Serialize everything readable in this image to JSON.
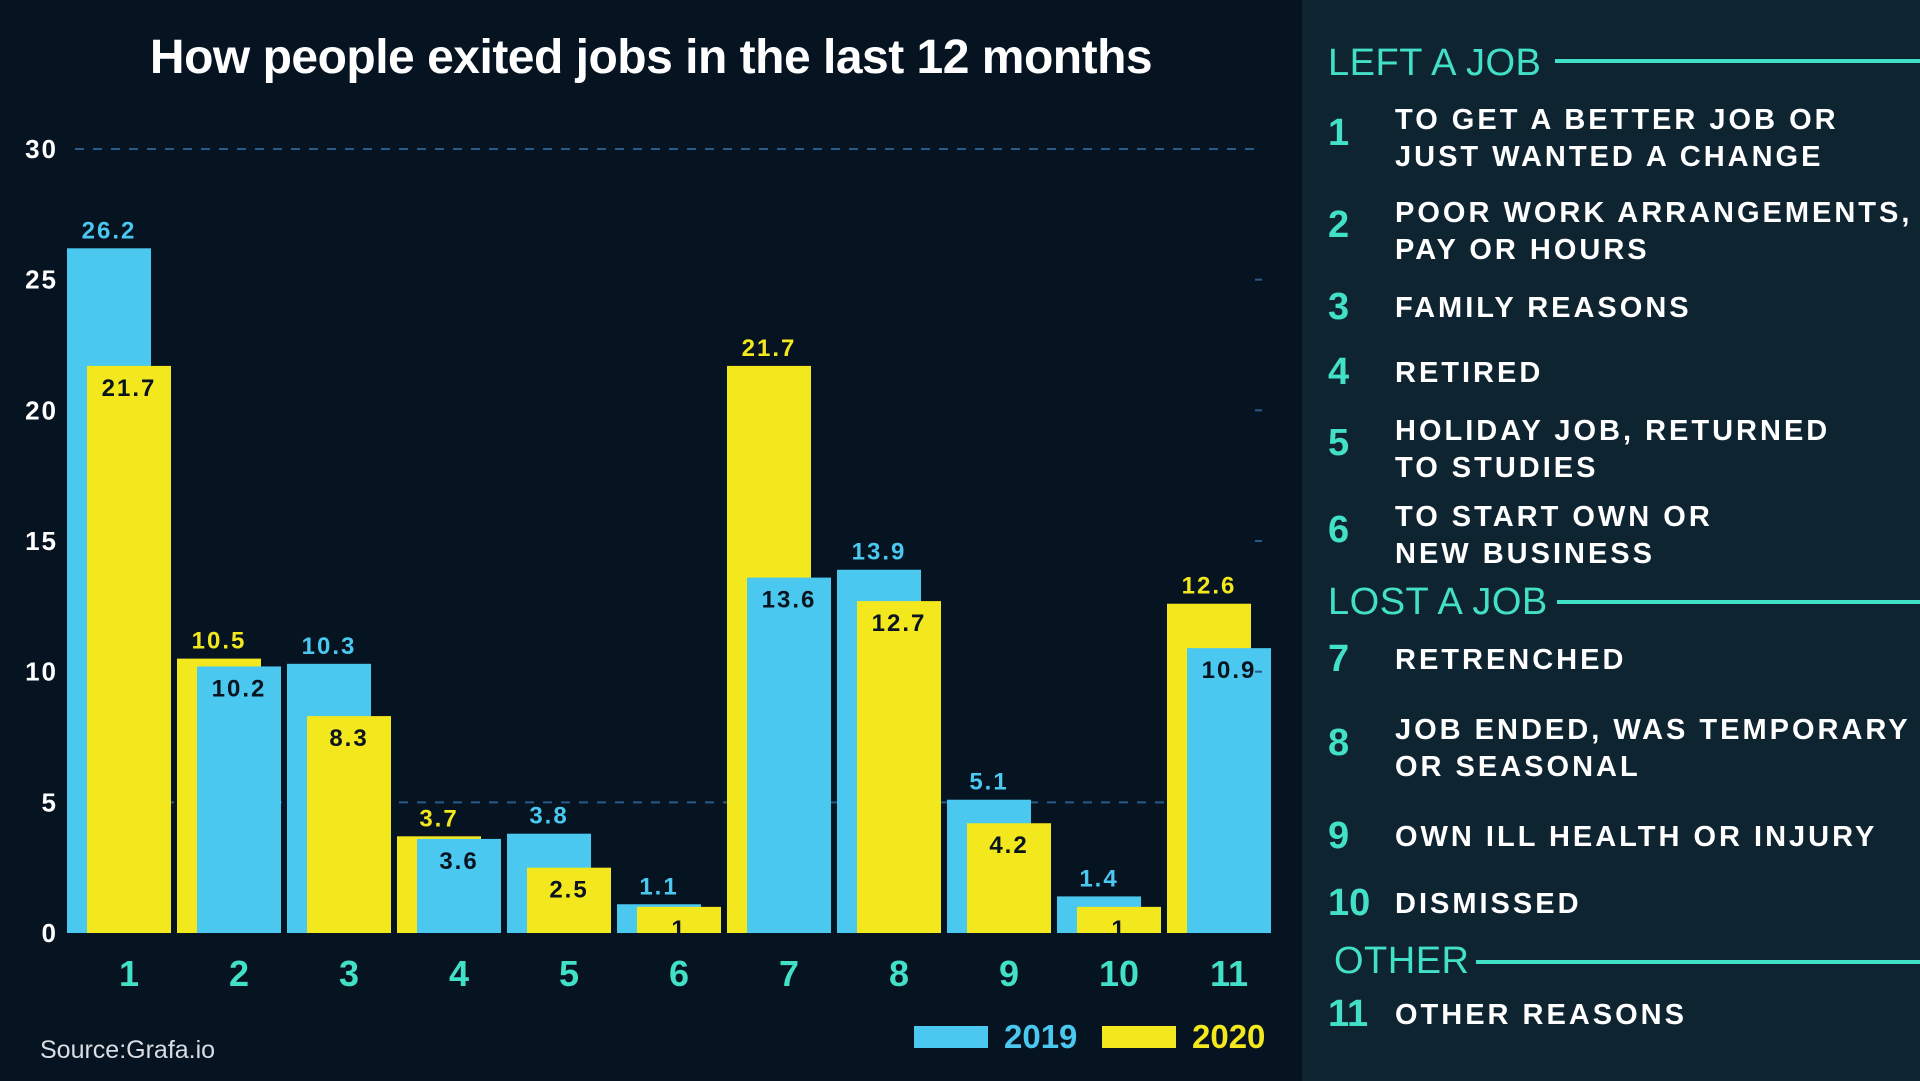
{
  "chart_data": {
    "type": "bar",
    "title": "How people exited jobs in the last 12 months",
    "categories": [
      "1",
      "2",
      "3",
      "4",
      "5",
      "6",
      "7",
      "8",
      "9",
      "10",
      "11"
    ],
    "series": [
      {
        "name": "2019",
        "values": [
          26.2,
          10.2,
          10.3,
          3.6,
          3.8,
          1.1,
          13.6,
          13.9,
          5.1,
          1.4,
          10.9
        ]
      },
      {
        "name": "2020",
        "values": [
          21.7,
          10.5,
          8.3,
          3.7,
          2.5,
          1,
          21.7,
          12.7,
          4.2,
          1,
          12.6
        ]
      }
    ],
    "front_series": [
      1,
      0,
      1,
      0,
      1,
      1,
      0,
      1,
      1,
      1,
      0
    ],
    "y_ticks": [
      "0",
      "5",
      "10",
      "15",
      "20",
      "25",
      "30"
    ],
    "ylim": [
      0,
      30
    ],
    "legend_position": "bottom-right",
    "colors": {
      "2019": "#4bc8ef",
      "2020": "#f3e71e"
    }
  },
  "source": "Source:Grafa.io",
  "legend": {
    "label_2019": "2019",
    "label_2020": "2020"
  },
  "panel": {
    "sections": [
      {
        "heading": "LEFT A JOB"
      },
      {
        "heading": "LOST A JOB"
      },
      {
        "heading": "OTHER"
      }
    ],
    "reasons": [
      {
        "num": "1",
        "line1": "TO GET A BETTER JOB OR",
        "line2": "JUST WANTED A CHANGE"
      },
      {
        "num": "2",
        "line1": "POOR WORK ARRANGEMENTS,",
        "line2": "PAY OR HOURS"
      },
      {
        "num": "3",
        "line1": "FAMILY REASONS",
        "line2": ""
      },
      {
        "num": "4",
        "line1": "RETIRED",
        "line2": ""
      },
      {
        "num": "5",
        "line1": "HOLIDAY JOB, RETURNED",
        "line2": "TO STUDIES"
      },
      {
        "num": "6",
        "line1": "TO START OWN OR",
        "line2": "NEW BUSINESS"
      },
      {
        "num": "7",
        "line1": "RETRENCHED",
        "line2": ""
      },
      {
        "num": "8",
        "line1": "JOB ENDED, WAS TEMPORARY",
        "line2": "OR SEASONAL"
      },
      {
        "num": "9",
        "line1": "OWN ILL HEALTH OR INJURY",
        "line2": ""
      },
      {
        "num": "10",
        "line1": "DISMISSED",
        "line2": ""
      },
      {
        "num": "11",
        "line1": "OTHER REASONS",
        "line2": ""
      }
    ],
    "accent_color": "#43e0c8"
  }
}
